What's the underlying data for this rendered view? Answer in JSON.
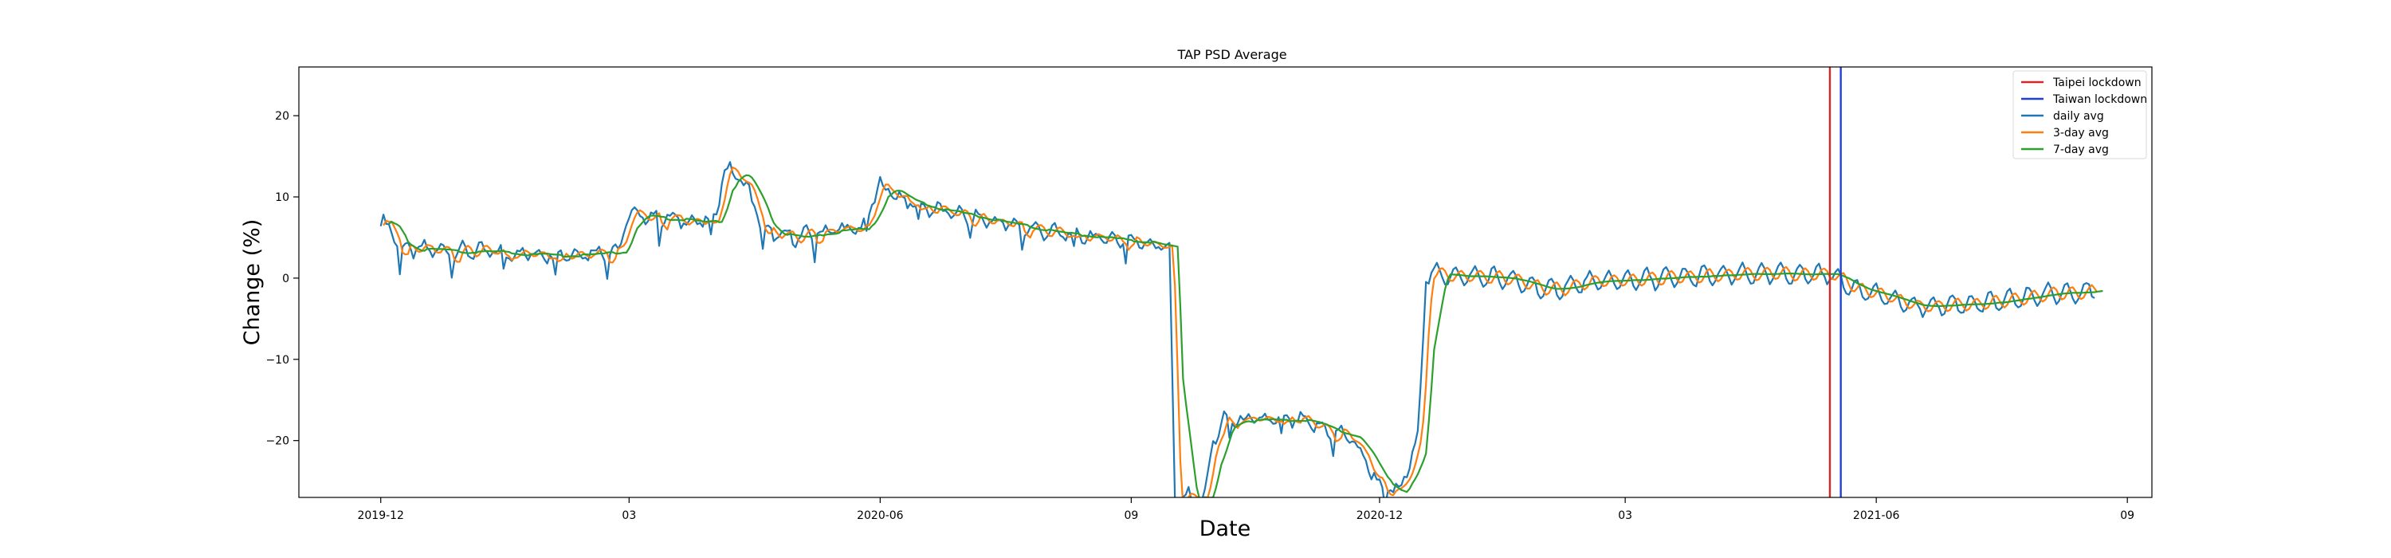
{
  "chart_data": {
    "type": "line",
    "title": "TAP PSD Average",
    "xlabel": "Date",
    "ylabel": "Change (%)",
    "x_range": [
      "2019-11-01",
      "2021-09-10"
    ],
    "ylim": [
      -27,
      26
    ],
    "grid": false,
    "legend_position": "top-right",
    "x_ticks": [
      {
        "date": "2019-12-01",
        "label": "2019-12"
      },
      {
        "date": "2020-03-01",
        "label": "03"
      },
      {
        "date": "2020-06-01",
        "label": "2020-06"
      },
      {
        "date": "2020-09-01",
        "label": "09"
      },
      {
        "date": "2020-12-01",
        "label": "2020-12"
      },
      {
        "date": "2021-03-01",
        "label": "03"
      },
      {
        "date": "2021-06-01",
        "label": "2021-06"
      },
      {
        "date": "2021-09-01",
        "label": "09"
      }
    ],
    "y_ticks": [
      20,
      10,
      0,
      -10,
      -20
    ],
    "y_tick_labels": [
      "20",
      "10",
      "0",
      "−10",
      "−20"
    ],
    "vertical_lines": [
      {
        "name": "Taipei lockdown",
        "date": "2021-05-15",
        "color": "#d62728"
      },
      {
        "name": "Taiwan lockdown",
        "date": "2021-05-19",
        "color": "#1f3fd6"
      }
    ],
    "anchors": [
      [
        "2019-12-01",
        7.0
      ],
      [
        "2019-12-05",
        6.0
      ],
      [
        "2019-12-08",
        3.5
      ],
      [
        "2019-12-20",
        3.5
      ],
      [
        "2020-01-10",
        3.2
      ],
      [
        "2020-01-25",
        3.0
      ],
      [
        "2020-02-10",
        3.0
      ],
      [
        "2020-02-26",
        3.5
      ],
      [
        "2020-03-01",
        7.8
      ],
      [
        "2020-03-10",
        7.5
      ],
      [
        "2020-03-25",
        7.0
      ],
      [
        "2020-04-01",
        7.0
      ],
      [
        "2020-04-05",
        13.5
      ],
      [
        "2020-04-12",
        12.0
      ],
      [
        "2020-04-20",
        5.5
      ],
      [
        "2020-05-01",
        5.0
      ],
      [
        "2020-05-15",
        6.0
      ],
      [
        "2020-05-25",
        6.0
      ],
      [
        "2020-06-01",
        11.5
      ],
      [
        "2020-06-10",
        9.5
      ],
      [
        "2020-06-20",
        8.5
      ],
      [
        "2020-07-05",
        7.5
      ],
      [
        "2020-07-20",
        6.5
      ],
      [
        "2020-08-05",
        5.5
      ],
      [
        "2020-08-20",
        5.0
      ],
      [
        "2020-09-05",
        4.5
      ],
      [
        "2020-09-15",
        3.8
      ],
      [
        "2020-09-17",
        -27.0
      ],
      [
        "2020-09-28",
        -27.0
      ],
      [
        "2020-10-01",
        -20.0
      ],
      [
        "2020-10-05",
        -17.5
      ],
      [
        "2020-10-20",
        -17.5
      ],
      [
        "2020-11-01",
        -17.5
      ],
      [
        "2020-11-10",
        -18.5
      ],
      [
        "2020-11-20",
        -19.5
      ],
      [
        "2020-11-25",
        -22.0
      ],
      [
        "2020-12-01",
        -25.5
      ],
      [
        "2020-12-08",
        -26.5
      ],
      [
        "2020-12-15",
        -20.0
      ],
      [
        "2020-12-18",
        0.5
      ],
      [
        "2021-01-15",
        0.0
      ],
      [
        "2021-02-01",
        -1.5
      ],
      [
        "2021-02-15",
        -0.5
      ],
      [
        "2021-03-15",
        0.0
      ],
      [
        "2021-04-15",
        0.5
      ],
      [
        "2021-05-15",
        0.5
      ],
      [
        "2021-05-22",
        -1.0
      ],
      [
        "2021-06-01",
        -2.0
      ],
      [
        "2021-06-15",
        -3.5
      ],
      [
        "2021-07-15",
        -3.0
      ],
      [
        "2021-08-01",
        -2.0
      ],
      [
        "2021-08-20",
        -1.5
      ]
    ],
    "series": [
      {
        "name": "daily avg",
        "color": "#1f77b4",
        "shift_days": 0,
        "smooth": 1,
        "amp": 1.2
      },
      {
        "name": "3-day avg",
        "color": "#ff7f0e",
        "shift_days": 1,
        "smooth": 3,
        "amp": 1.0
      },
      {
        "name": "7-day avg",
        "color": "#2ca02c",
        "shift_days": 3,
        "smooth": 7,
        "amp": 0.6
      }
    ]
  }
}
